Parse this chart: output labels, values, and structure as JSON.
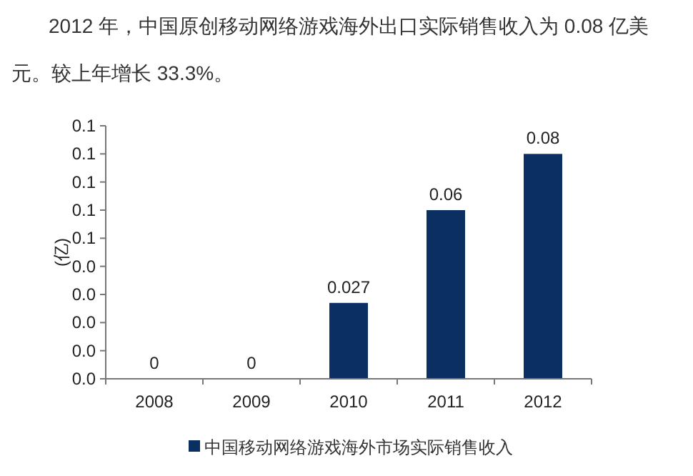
{
  "chart_data": {
    "type": "bar",
    "title": "2012 年，中国原创移动网络游戏海外出口实际销售收入为 0.08 亿美元。较上年增长 33.3%。",
    "ylabel": "(亿)",
    "categories": [
      "2008",
      "2009",
      "2010",
      "2011",
      "2012"
    ],
    "series": [
      {
        "name": "中国移动网络游戏海外市场实际销售收入",
        "color": "#0c2f63",
        "values": [
          0,
          0,
          0.027,
          0.06,
          0.08
        ]
      }
    ],
    "ylim": [
      0,
      0.09
    ],
    "yticks": [
      {
        "value": 0,
        "label": "0.0"
      },
      {
        "value": 0.01,
        "label": "0.0"
      },
      {
        "value": 0.02,
        "label": "0.0"
      },
      {
        "value": 0.03,
        "label": "0.0"
      },
      {
        "value": 0.04,
        "label": "0.0"
      },
      {
        "value": 0.05,
        "label": "0.1"
      },
      {
        "value": 0.06,
        "label": "0.1"
      },
      {
        "value": 0.07,
        "label": "0.1"
      },
      {
        "value": 0.08,
        "label": "0.1"
      },
      {
        "value": 0.09,
        "label": "0.1"
      }
    ],
    "data_labels": true,
    "legend": "bottom",
    "grid": false
  }
}
